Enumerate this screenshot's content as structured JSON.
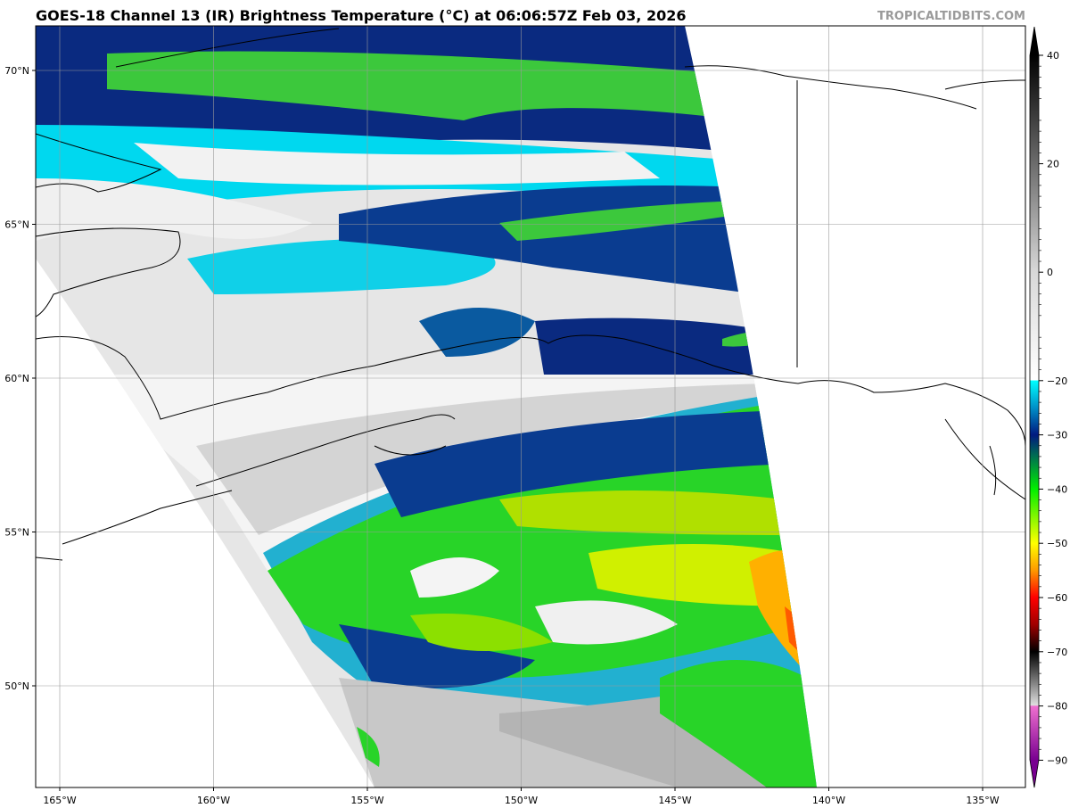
{
  "header": {
    "title": "GOES-18 Channel 13 (IR) Brightness Temperature (°C) at 06:06:57Z Feb 03, 2026",
    "watermark": "TROPICALTIDBITS.COM"
  },
  "map": {
    "lon_ticks": [
      {
        "value": -165,
        "label": "165°W"
      },
      {
        "value": -160,
        "label": "160°W"
      },
      {
        "value": -155,
        "label": "155°W"
      },
      {
        "value": -150,
        "label": "150°W"
      },
      {
        "value": -145,
        "label": "145°W"
      },
      {
        "value": -140,
        "label": "140°W"
      },
      {
        "value": -135,
        "label": "135°W"
      }
    ],
    "lat_ticks": [
      {
        "value": 70,
        "label": "70°N"
      },
      {
        "value": 65,
        "label": "65°N"
      },
      {
        "value": 60,
        "label": "60°N"
      },
      {
        "value": 55,
        "label": "55°N"
      },
      {
        "value": 50,
        "label": "50°N"
      }
    ],
    "grid": true
  },
  "colorbar": {
    "ticks": [
      "40",
      "20",
      "0",
      "−20",
      "−30",
      "−40",
      "−50",
      "−60",
      "−70",
      "−80",
      "−90"
    ],
    "tick_values": [
      40,
      20,
      0,
      -20,
      -30,
      -40,
      -50,
      -60,
      -70,
      -80,
      -90
    ],
    "range": [
      -90,
      40
    ],
    "stops": [
      {
        "v": 40,
        "c": "#000000"
      },
      {
        "v": 0,
        "c": "#d8d8d8"
      },
      {
        "v": -19.9,
        "c": "#ffffff"
      },
      {
        "v": -20,
        "c": "#00ffff"
      },
      {
        "v": -25,
        "c": "#0090c8"
      },
      {
        "v": -30,
        "c": "#001a80"
      },
      {
        "v": -34,
        "c": "#007050"
      },
      {
        "v": -40,
        "c": "#00ee00"
      },
      {
        "v": -50,
        "c": "#ffff00"
      },
      {
        "v": -55,
        "c": "#ff9900"
      },
      {
        "v": -60,
        "c": "#ff0000"
      },
      {
        "v": -65,
        "c": "#a00000"
      },
      {
        "v": -70,
        "c": "#000000"
      },
      {
        "v": -79.9,
        "c": "#e0e0e0"
      },
      {
        "v": -80,
        "c": "#f070d0"
      },
      {
        "v": -90,
        "c": "#780090"
      }
    ]
  }
}
